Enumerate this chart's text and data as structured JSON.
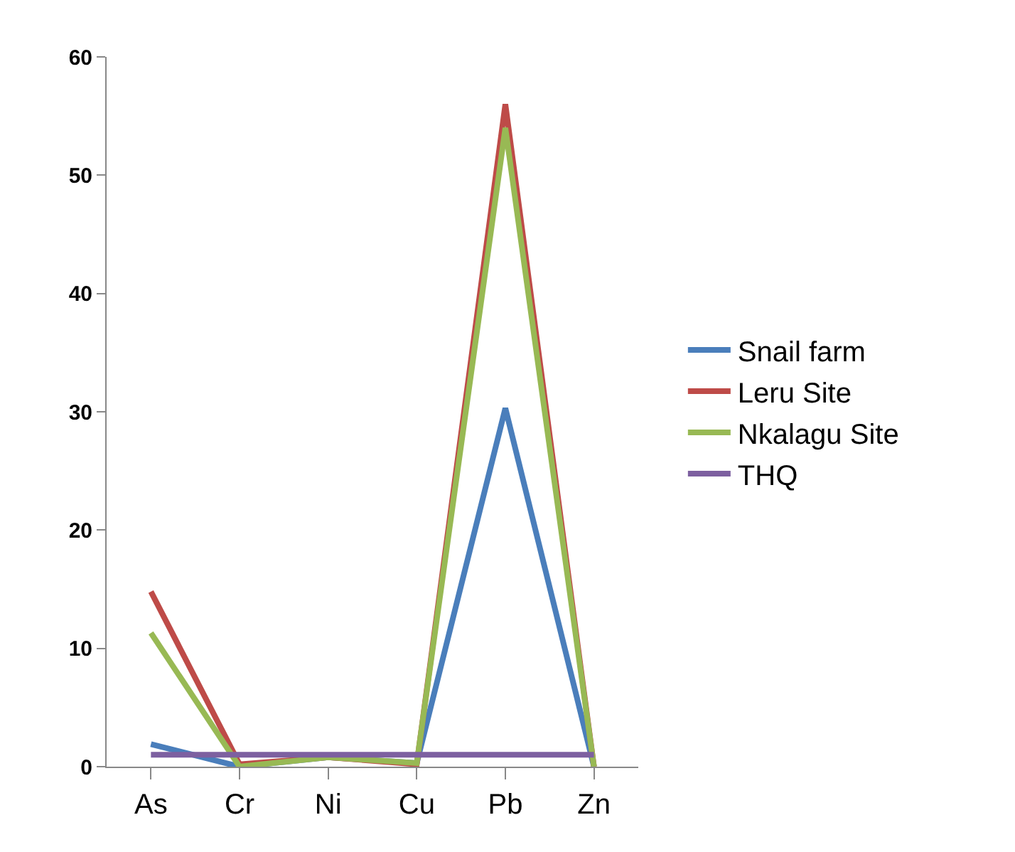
{
  "chart_data": {
    "type": "line",
    "categories": [
      "As",
      "Cr",
      "Ni",
      "Cu",
      "Pb",
      "Zn"
    ],
    "series": [
      {
        "name": "Snail farm",
        "color": "#4a7ebb",
        "values": [
          1.9,
          0,
          0.8,
          0.3,
          30.3,
          0
        ]
      },
      {
        "name": "Leru Site",
        "color": "#be4b48",
        "values": [
          14.8,
          0.2,
          0.8,
          0.2,
          56,
          0
        ]
      },
      {
        "name": "Nkalagu Site",
        "color": "#98b954",
        "values": [
          11.3,
          0,
          0.8,
          0.3,
          54,
          0
        ]
      },
      {
        "name": "THQ",
        "color": "#7d60a0",
        "values": [
          1,
          1,
          1,
          1,
          1,
          1
        ]
      }
    ],
    "ylim": [
      0,
      60
    ],
    "yticks": [
      0,
      10,
      20,
      30,
      40,
      50,
      60
    ],
    "grid": false,
    "legend": "right",
    "marker": "none",
    "line_style": "solid"
  }
}
